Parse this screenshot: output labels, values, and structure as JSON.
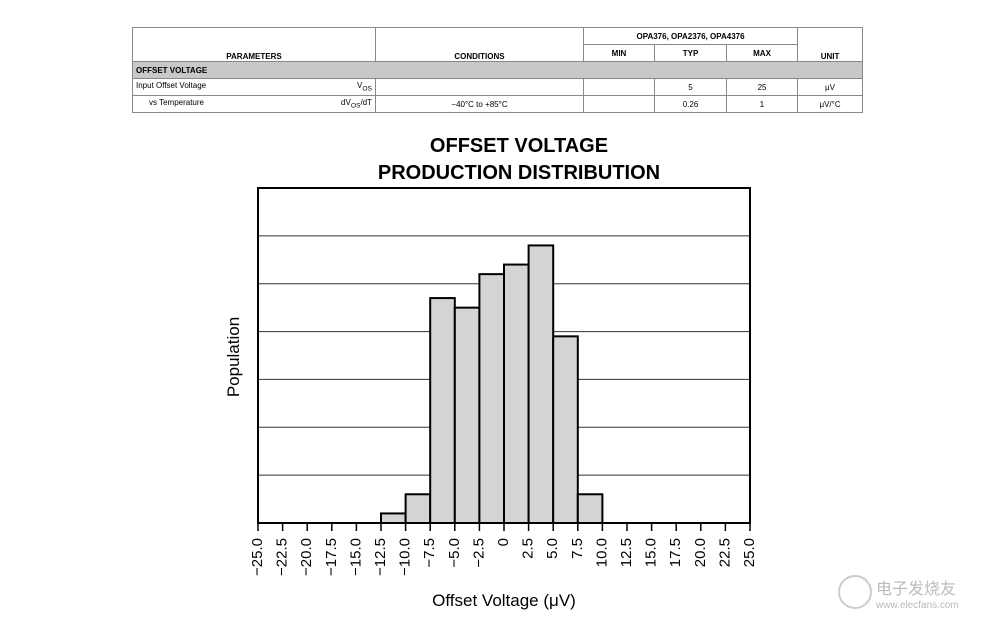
{
  "table": {
    "group_header": "OPA376, OPA2376, OPA4376",
    "headers": [
      "PARAMETERS",
      "CONDITIONS",
      "MIN",
      "TYP",
      "MAX",
      "UNIT"
    ],
    "section": "OFFSET VOLTAGE",
    "rows": [
      {
        "parameter": "Input Offset Voltage",
        "symbol": [
          "V",
          "OS"
        ],
        "typ": 5,
        "max": 25,
        "unit": "μV"
      },
      {
        "parameter": "vs Temperature",
        "symbol": [
          "dV",
          "OS",
          "/dT"
        ],
        "conditions": "−40°C to +85°C",
        "typ": 0.26,
        "max": 1,
        "unit": "μV/°C"
      }
    ]
  },
  "chart_data": {
    "type": "histogram",
    "title": [
      "OFFSET VOLTAGE",
      "PRODUCTION DISTRIBUTION"
    ],
    "x_label": "Offset Voltage (μV)",
    "y_label": "Population",
    "bins": [
      -12.5,
      -10,
      -7.5,
      -5,
      -2.5,
      0,
      2.5,
      5,
      7.5,
      10
    ],
    "counts": [
      0.2,
      0.6,
      4.7,
      4.5,
      5.2,
      5.4,
      5.8,
      3.9,
      0.6
    ],
    "color": "#d4d4d4",
    "xlim": [
      -25,
      25
    ],
    "xticks": [
      {
        "value": -25,
        "label": "−25.0"
      },
      {
        "value": -22.5,
        "label": "−22.5"
      },
      {
        "value": -20,
        "label": "−20.0"
      },
      {
        "value": -17.5,
        "label": "−17.5"
      },
      {
        "value": -15,
        "label": "−15.0"
      },
      {
        "value": -12.5,
        "label": "−12.5"
      },
      {
        "value": -10,
        "label": "−10.0"
      },
      {
        "value": -7.5,
        "label": "−7.5"
      },
      {
        "value": -5,
        "label": "−5.0"
      },
      {
        "value": -2.5,
        "label": "−2.5"
      },
      0,
      2.5,
      {
        "value": 5,
        "label": "5.0"
      },
      7.5,
      {
        "value": 10,
        "label": "10.0"
      },
      12.5,
      {
        "value": 15,
        "label": "15.0"
      },
      17.5,
      {
        "value": 20,
        "label": "20.0"
      },
      22.5,
      {
        "value": 25,
        "label": "25.0"
      }
    ],
    "ylim": [
      0,
      7
    ],
    "ygrid": [
      1,
      2,
      3,
      4,
      5,
      6
    ]
  },
  "watermark": [
    "电子发烧友",
    "www.elecfans.com"
  ]
}
